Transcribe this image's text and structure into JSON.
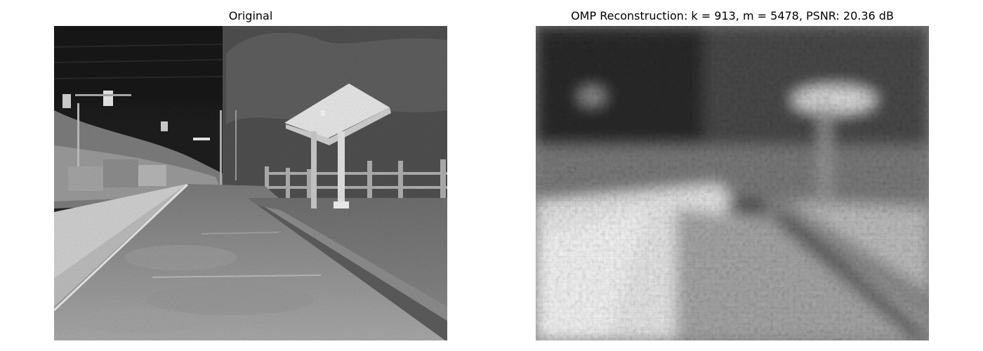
{
  "figure": {
    "left": {
      "title": "Original"
    },
    "right": {
      "title": "OMP Reconstruction: k = 913, m = 5478, PSNR: 20.36 dB"
    }
  },
  "colors": {
    "background": "#ffffff",
    "title_text": "#000000",
    "sky_dark": "#1c1c1c",
    "tree_gray": "#555555",
    "road_gray": "#8e8e8e",
    "sidewalk_light": "#d4d4d4",
    "curb_gray": "#6a6a6a",
    "shelter_roof": "#e6e6e6"
  },
  "images": {
    "left": {
      "description_icon": "thermal-street-scene-icon"
    },
    "right": {
      "description_icon": "noisy-reconstruction-icon"
    }
  }
}
